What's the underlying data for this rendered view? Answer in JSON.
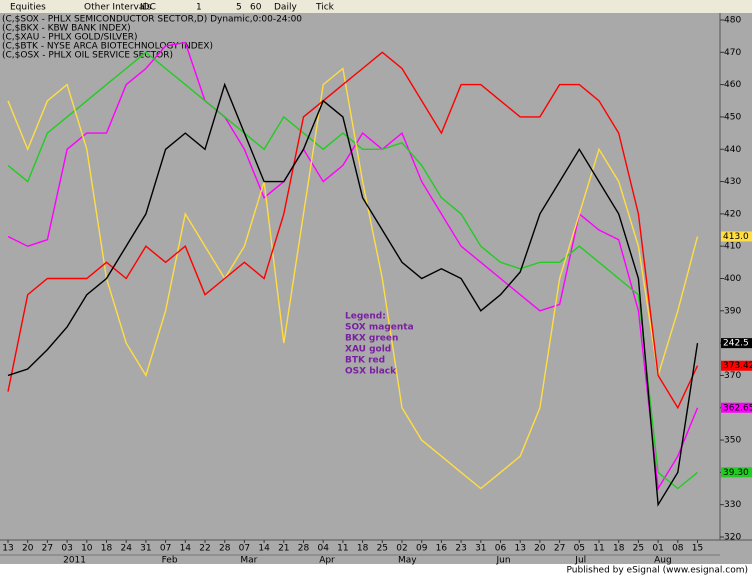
{
  "toolbar": {
    "items": [
      "Equities",
      "Other Intervals",
      "IDC",
      "1",
      "5",
      "60",
      "Daily",
      "Tick"
    ]
  },
  "chart_data": {
    "type": "line",
    "header_lines": [
      "(C,$SOX - PHLX SEMICONDUCTOR SECTOR,D) Dynamic,0:00-24:00",
      "(C,$BKX - KBW BANK INDEX)",
      "(C,$XAU - PHLX GOLD/SILVER)",
      "(C,$BTK - NYSE ARCA BIOTECHNOLOGY INDEX)",
      "(C,$OSX - PHLX OIL SERVICE SECTOR)"
    ],
    "categories": [
      "13",
      "20",
      "27",
      "03",
      "10",
      "18",
      "24",
      "31",
      "07",
      "14",
      "22",
      "28",
      "07",
      "14",
      "21",
      "28",
      "04",
      "11",
      "18",
      "25",
      "02",
      "09",
      "16",
      "23",
      "31",
      "06",
      "13",
      "20",
      "27",
      "05",
      "11",
      "18",
      "25",
      "01",
      "08",
      "15"
    ],
    "month_labels": [
      "2011",
      "Feb",
      "Mar",
      "Apr",
      "May",
      "Jun",
      "Jul",
      "Aug"
    ],
    "ylim": [
      320,
      480
    ],
    "yticks": [
      320,
      330,
      340,
      350,
      360,
      370,
      380,
      390,
      400,
      410,
      420,
      430,
      440,
      450,
      460,
      470,
      480
    ],
    "grid": false,
    "series": [
      {
        "name": "SOX",
        "color": "#ff00ff",
        "last_label": "362.65",
        "values": [
          413,
          410,
          412,
          440,
          445,
          445,
          460,
          465,
          472,
          473,
          455,
          450,
          440,
          425,
          430,
          440,
          430,
          435,
          445,
          440,
          445,
          430,
          420,
          410,
          405,
          400,
          395,
          390,
          392,
          420,
          415,
          412,
          390,
          335,
          345,
          360
        ]
      },
      {
        "name": "BKX",
        "color": "#22cc22",
        "last_label": "39.30",
        "values": [
          435,
          430,
          445,
          450,
          455,
          460,
          465,
          470,
          465,
          460,
          455,
          450,
          445,
          440,
          450,
          445,
          440,
          445,
          440,
          440,
          442,
          435,
          425,
          420,
          410,
          405,
          403,
          405,
          405,
          410,
          405,
          400,
          395,
          340,
          335,
          340
        ]
      },
      {
        "name": "XAU",
        "color": "#ffdd44",
        "last_label": "413.0",
        "values": [
          455,
          440,
          455,
          460,
          440,
          400,
          380,
          370,
          390,
          420,
          410,
          400,
          410,
          430,
          380,
          420,
          460,
          465,
          430,
          400,
          360,
          350,
          345,
          340,
          335,
          340,
          345,
          360,
          400,
          420,
          440,
          430,
          410,
          370,
          390,
          413
        ]
      },
      {
        "name": "BTK",
        "color": "#ff0000",
        "last_label": "373.42",
        "values": [
          365,
          395,
          400,
          400,
          400,
          405,
          400,
          410,
          405,
          410,
          395,
          400,
          405,
          400,
          420,
          450,
          455,
          460,
          465,
          470,
          465,
          455,
          445,
          460,
          460,
          455,
          450,
          450,
          460,
          460,
          455,
          445,
          420,
          370,
          360,
          373
        ]
      },
      {
        "name": "OSX",
        "color": "#000000",
        "last_label": "242.5",
        "values": [
          370,
          372,
          378,
          385,
          395,
          400,
          410,
          420,
          440,
          445,
          440,
          460,
          445,
          430,
          430,
          440,
          455,
          450,
          425,
          415,
          405,
          400,
          403,
          400,
          390,
          395,
          402,
          420,
          430,
          440,
          430,
          420,
          400,
          330,
          340,
          380
        ]
      }
    ],
    "legend_note": [
      "Legend:",
      "SOX magenta",
      "BKX green",
      "XAU gold",
      "BTK red",
      "OSX black"
    ],
    "publisher": "Published by eSignal (www.esignal.com)"
  }
}
